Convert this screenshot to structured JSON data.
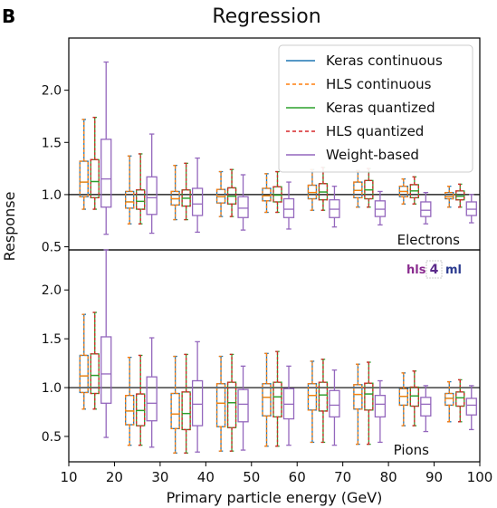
{
  "figure": {
    "panel_letter": "B",
    "title": "Regression",
    "logo": {
      "parts": [
        "hls",
        "4",
        "ml"
      ],
      "colors": [
        "#8a2c8f",
        "#5b2a8a",
        "#2b3b8f"
      ]
    }
  },
  "colors": {
    "keras_continuous": "#1f77b4",
    "hls_continuous": "#ff7f0e",
    "keras_quantized": "#2ca02c",
    "hls_quantized": "#d62728",
    "weight_based": "#9467bd"
  },
  "chart_data": {
    "type": "boxplot",
    "xlabel": "Primary particle energy (GeV)",
    "ylabel": "Response",
    "xlim": [
      10,
      100
    ],
    "xticks": [
      "10",
      "20",
      "30",
      "40",
      "50",
      "60",
      "70",
      "80",
      "90",
      "100"
    ],
    "reference_line": 1.0,
    "legend": {
      "placement": "top-right of upper panel",
      "entries": [
        {
          "label": "Keras continuous",
          "style": "solid",
          "color": "#1f77b4"
        },
        {
          "label": "HLS continuous",
          "style": "dashed",
          "color": "#ff7f0e"
        },
        {
          "label": "Keras quantized",
          "style": "solid",
          "color": "#2ca02c"
        },
        {
          "label": "HLS quantized",
          "style": "dashed",
          "color": "#d62728"
        },
        {
          "label": "Weight-based",
          "style": "solid",
          "color": "#9467bd"
        }
      ]
    },
    "panels": [
      {
        "name": "Electrons",
        "ylim": [
          0.47,
          2.5
        ],
        "yticks": [
          "0.5",
          "1.0",
          "1.5",
          "2.0"
        ],
        "groups": [
          {
            "x": 15,
            "nn": {
              "q1": 0.98,
              "med": 1.12,
              "q3": 1.32,
              "lo": 0.86,
              "hi": 1.72
            },
            "wb": {
              "q1": 0.88,
              "med": 1.15,
              "q3": 1.53,
              "lo": 0.62,
              "hi": 2.27
            }
          },
          {
            "x": 25,
            "nn": {
              "q1": 0.87,
              "med": 0.93,
              "q3": 1.03,
              "lo": 0.72,
              "hi": 1.37
            },
            "wb": {
              "q1": 0.81,
              "med": 0.97,
              "q3": 1.17,
              "lo": 0.63,
              "hi": 1.58
            }
          },
          {
            "x": 35,
            "nn": {
              "q1": 0.9,
              "med": 0.96,
              "q3": 1.03,
              "lo": 0.76,
              "hi": 1.28
            },
            "wb": {
              "q1": 0.8,
              "med": 0.91,
              "q3": 1.06,
              "lo": 0.64,
              "hi": 1.35
            }
          },
          {
            "x": 45,
            "nn": {
              "q1": 0.92,
              "med": 0.98,
              "q3": 1.05,
              "lo": 0.79,
              "hi": 1.22
            },
            "wb": {
              "q1": 0.78,
              "med": 0.87,
              "q3": 0.98,
              "lo": 0.66,
              "hi": 1.19
            }
          },
          {
            "x": 55,
            "nn": {
              "q1": 0.94,
              "med": 0.99,
              "q3": 1.06,
              "lo": 0.83,
              "hi": 1.2
            },
            "wb": {
              "q1": 0.78,
              "med": 0.86,
              "q3": 0.96,
              "lo": 0.67,
              "hi": 1.12
            }
          },
          {
            "x": 65,
            "nn": {
              "q1": 0.96,
              "med": 1.02,
              "q3": 1.09,
              "lo": 0.85,
              "hi": 1.24
            },
            "wb": {
              "q1": 0.78,
              "med": 0.86,
              "q3": 0.95,
              "lo": 0.69,
              "hi": 1.08
            }
          },
          {
            "x": 75,
            "nn": {
              "q1": 0.97,
              "med": 1.04,
              "q3": 1.12,
              "lo": 0.88,
              "hi": 1.23
            },
            "wb": {
              "q1": 0.79,
              "med": 0.86,
              "q3": 0.94,
              "lo": 0.71,
              "hi": 1.03
            }
          },
          {
            "x": 85,
            "nn": {
              "q1": 0.98,
              "med": 1.03,
              "q3": 1.08,
              "lo": 0.91,
              "hi": 1.15
            },
            "wb": {
              "q1": 0.79,
              "med": 0.85,
              "q3": 0.93,
              "lo": 0.72,
              "hi": 1.02
            }
          },
          {
            "x": 95,
            "nn": {
              "q1": 0.96,
              "med": 0.98,
              "q3": 1.02,
              "lo": 0.88,
              "hi": 1.08
            },
            "wb": {
              "q1": 0.8,
              "med": 0.86,
              "q3": 0.93,
              "lo": 0.73,
              "hi": 1.0
            }
          }
        ]
      },
      {
        "name": "Pions",
        "ylim": [
          0.24,
          2.41
        ],
        "yticks": [
          "0.5",
          "1.0",
          "1.5",
          "2.0"
        ],
        "groups": [
          {
            "x": 15,
            "nn": {
              "q1": 0.95,
              "med": 1.12,
              "q3": 1.33,
              "lo": 0.78,
              "hi": 1.75
            },
            "wb": {
              "q1": 0.84,
              "med": 1.14,
              "q3": 1.52,
              "lo": 0.49,
              "hi": 2.41
            }
          },
          {
            "x": 25,
            "nn": {
              "q1": 0.62,
              "med": 0.76,
              "q3": 0.92,
              "lo": 0.41,
              "hi": 1.31
            },
            "wb": {
              "q1": 0.66,
              "med": 0.84,
              "q3": 1.11,
              "lo": 0.39,
              "hi": 1.51
            }
          },
          {
            "x": 35,
            "nn": {
              "q1": 0.58,
              "med": 0.73,
              "q3": 0.94,
              "lo": 0.33,
              "hi": 1.32
            },
            "wb": {
              "q1": 0.61,
              "med": 0.83,
              "q3": 1.07,
              "lo": 0.34,
              "hi": 1.47
            }
          },
          {
            "x": 45,
            "nn": {
              "q1": 0.6,
              "med": 0.84,
              "q3": 1.04,
              "lo": 0.35,
              "hi": 1.32
            },
            "wb": {
              "q1": 0.65,
              "med": 0.83,
              "q3": 0.98,
              "lo": 0.36,
              "hi": 1.22
            }
          },
          {
            "x": 55,
            "nn": {
              "q1": 0.71,
              "med": 0.9,
              "q3": 1.04,
              "lo": 0.4,
              "hi": 1.35
            },
            "wb": {
              "q1": 0.68,
              "med": 0.83,
              "q3": 0.99,
              "lo": 0.41,
              "hi": 1.22
            }
          },
          {
            "x": 65,
            "nn": {
              "q1": 0.77,
              "med": 0.92,
              "q3": 1.04,
              "lo": 0.44,
              "hi": 1.27
            },
            "wb": {
              "q1": 0.7,
              "med": 0.82,
              "q3": 0.97,
              "lo": 0.41,
              "hi": 1.18
            }
          },
          {
            "x": 75,
            "nn": {
              "q1": 0.78,
              "med": 0.93,
              "q3": 1.03,
              "lo": 0.42,
              "hi": 1.24
            },
            "wb": {
              "q1": 0.7,
              "med": 0.83,
              "q3": 0.92,
              "lo": 0.44,
              "hi": 1.07
            }
          },
          {
            "x": 85,
            "nn": {
              "q1": 0.82,
              "med": 0.91,
              "q3": 0.99,
              "lo": 0.61,
              "hi": 1.15
            },
            "wb": {
              "q1": 0.71,
              "med": 0.83,
              "q3": 0.9,
              "lo": 0.55,
              "hi": 1.02
            }
          },
          {
            "x": 95,
            "nn": {
              "q1": 0.82,
              "med": 0.89,
              "q3": 0.94,
              "lo": 0.65,
              "hi": 1.06
            },
            "wb": {
              "q1": 0.72,
              "med": 0.82,
              "q3": 0.89,
              "lo": 0.57,
              "hi": 1.02
            }
          }
        ]
      }
    ]
  }
}
